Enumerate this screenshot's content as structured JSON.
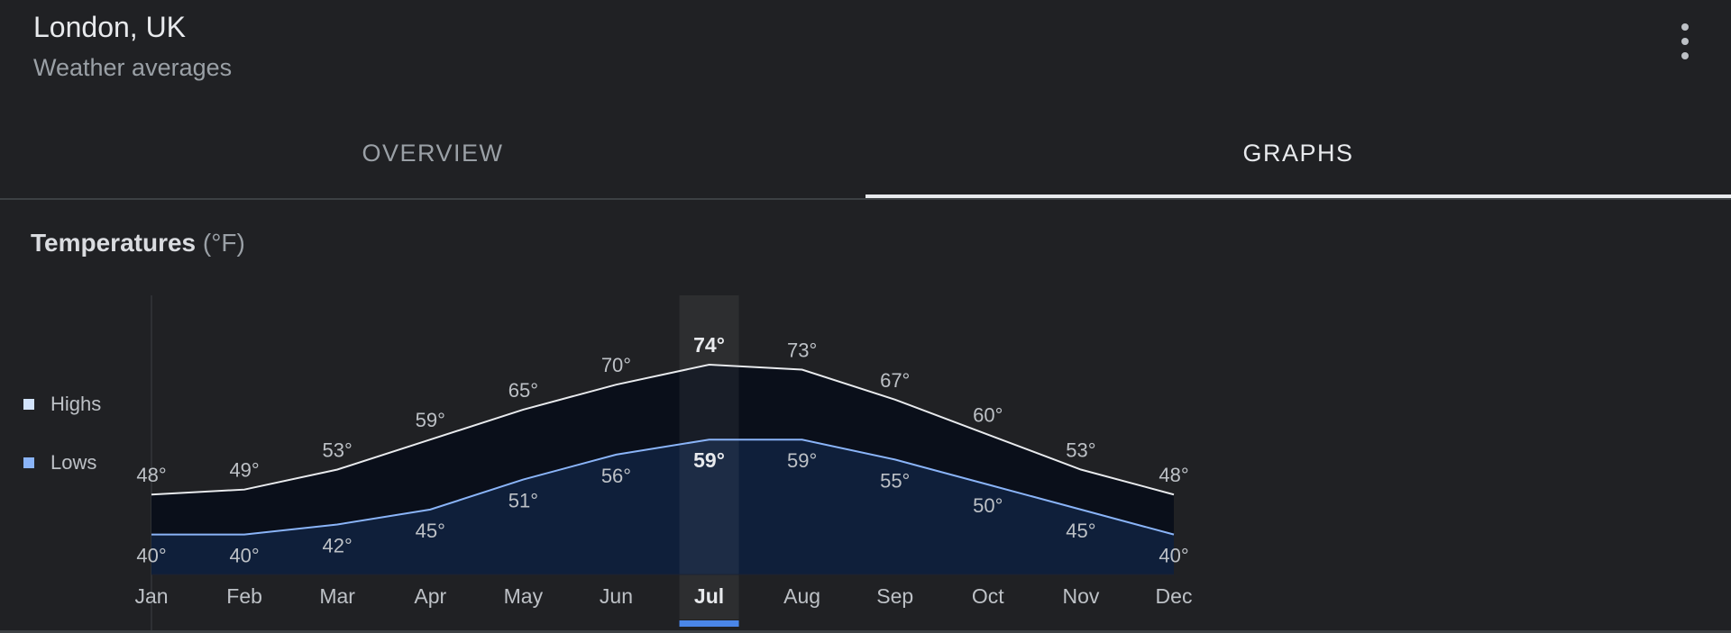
{
  "header": {
    "title": "London, UK",
    "subtitle": "Weather averages"
  },
  "tabs": [
    {
      "label": "OVERVIEW",
      "active": false
    },
    {
      "label": "GRAPHS",
      "active": true
    }
  ],
  "chart_heading": {
    "title": "Temperatures",
    "unit": "(°F)"
  },
  "legend": [
    {
      "label": "Highs",
      "color": "#d2e3fc"
    },
    {
      "label": "Lows",
      "color": "#8ab4f8"
    }
  ],
  "colors": {
    "highs_line": "#e8eaed",
    "lows_line": "#8ab4f8",
    "highs_fill": "#0a0f1a",
    "lows_fill": "#0f1f3a",
    "selected_band": "#ffffff",
    "selected_indicator": "#4a86e8"
  },
  "chart_data": {
    "type": "area",
    "categories": [
      "Jan",
      "Feb",
      "Mar",
      "Apr",
      "May",
      "Jun",
      "Jul",
      "Aug",
      "Sep",
      "Oct",
      "Nov",
      "Dec"
    ],
    "series": [
      {
        "name": "Highs",
        "values": [
          48,
          49,
          53,
          59,
          65,
          70,
          74,
          73,
          67,
          60,
          53,
          48
        ]
      },
      {
        "name": "Lows",
        "values": [
          40,
          40,
          42,
          45,
          51,
          56,
          59,
          59,
          55,
          50,
          45,
          40
        ]
      }
    ],
    "data_labels": {
      "Highs": [
        "48°",
        "49°",
        "53°",
        "59°",
        "65°",
        "70°",
        "74°",
        "73°",
        "67°",
        "60°",
        "53°",
        "48°"
      ],
      "Lows": [
        "40°",
        "40°",
        "42°",
        "45°",
        "51°",
        "56°",
        "59°",
        "59°",
        "55°",
        "50°",
        "45°",
        "40°"
      ]
    },
    "selected": "Jul",
    "ylim": [
      32,
      80
    ],
    "grid": false,
    "legend_position": "left"
  }
}
